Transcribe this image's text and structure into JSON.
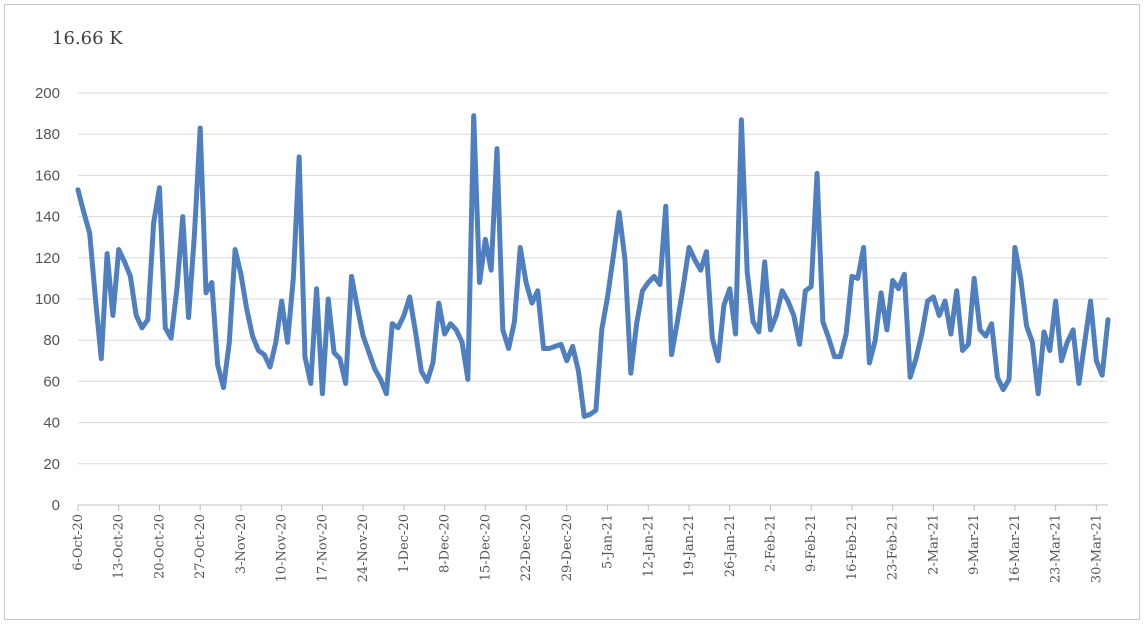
{
  "chart_data": {
    "type": "line",
    "title": "16.66 K",
    "xlabel": "",
    "ylabel": "",
    "ylim": [
      0,
      200
    ],
    "yticks": [
      0,
      20,
      40,
      60,
      80,
      100,
      120,
      140,
      160,
      180,
      200
    ],
    "grid": true,
    "legend": "none",
    "x_tick_labels": [
      "6-Oct-20",
      "13-Oct-20",
      "20-Oct-20",
      "27-Oct-20",
      "3-Nov-20",
      "10-Nov-20",
      "17-Nov-20",
      "24-Nov-20",
      "1-Dec-20",
      "8-Dec-20",
      "15-Dec-20",
      "22-Dec-20",
      "29-Dec-20",
      "5-Jan-21",
      "12-Jan-21",
      "19-Jan-21",
      "26-Jan-21",
      "2-Feb-21",
      "9-Feb-21",
      "16-Feb-21",
      "23-Feb-21",
      "2-Mar-21",
      "9-Mar-21",
      "16-Mar-21",
      "23-Mar-21",
      "30-Mar-21"
    ],
    "series": [
      {
        "name": "",
        "color": "#4f7fbf",
        "start_date": "6-Oct-20",
        "values": [
          153,
          142,
          132,
          100,
          71,
          122,
          92,
          124,
          118,
          111,
          92,
          86,
          90,
          137,
          154,
          86,
          81,
          105,
          140,
          91,
          131,
          183,
          103,
          108,
          68,
          57,
          79,
          124,
          112,
          95,
          82,
          75,
          73,
          67,
          79,
          99,
          79,
          110,
          169,
          72,
          59,
          105,
          54,
          100,
          74,
          71,
          59,
          111,
          96,
          82,
          74,
          66,
          61,
          54,
          88,
          86,
          92,
          101,
          84,
          65,
          60,
          69,
          98,
          83,
          88,
          85,
          79,
          61,
          189,
          108,
          129,
          114,
          173,
          85,
          76,
          89,
          125,
          108,
          98,
          104,
          76,
          76,
          77,
          78,
          70,
          77,
          65,
          43,
          44,
          46,
          85,
          101,
          121,
          142,
          119,
          64,
          88,
          104,
          108,
          111,
          107,
          145,
          73,
          89,
          106,
          125,
          119,
          114,
          123,
          81,
          70,
          97,
          105,
          83,
          187,
          113,
          89,
          84,
          118,
          85,
          92,
          104,
          99,
          92,
          78,
          104,
          106,
          161,
          89,
          81,
          72,
          72,
          83,
          111,
          110,
          125,
          69,
          80,
          103,
          85,
          109,
          105,
          112,
          62,
          71,
          83,
          99,
          101,
          92,
          99,
          83,
          104,
          75,
          78,
          110,
          85,
          82,
          88,
          62,
          56,
          61,
          125,
          110,
          87,
          79,
          54,
          84,
          75,
          99,
          70,
          79,
          85,
          59,
          79,
          99,
          70,
          63,
          90
        ]
      }
    ]
  }
}
